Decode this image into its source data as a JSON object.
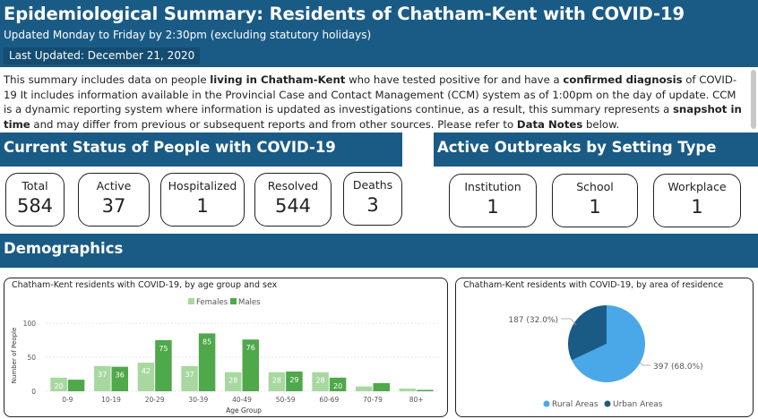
{
  "header": {
    "title": "Epidemiological Summary: Residents of Chatham-Kent with COVID-19",
    "subtitle": "Updated Monday to Friday by 2:30pm (excluding statutory holidays)",
    "last_updated": "Last Updated: December 21, 2020"
  },
  "intro": {
    "p1": "This summary includes data on people ",
    "b1": "living in Chatham-Kent",
    "p2": " who have tested positive for and have a ",
    "b2": "confirmed diagnosis",
    "p3": " of COVID-19 It includes information available in the Provincial Case and Contact Management (CCM) system as of 1:00pm on the day of update. CCM is a dynamic reporting system where information is updated as investigations continue, as a result, this summary represents a ",
    "b3": "snapshot in time",
    "p4": " and may differ from previous or subsequent reports and from other sources. Please refer to ",
    "b4": "Data Notes",
    "p5": " below."
  },
  "status": {
    "title": "Current Status of People with COVID-19",
    "cards": [
      {
        "label": "Total",
        "value": "584"
      },
      {
        "label": "Active",
        "value": "37"
      },
      {
        "label": "Hospitalized",
        "value": "1"
      },
      {
        "label": "Resolved",
        "value": "544"
      },
      {
        "label": "Deaths",
        "value": "3"
      }
    ]
  },
  "outbreaks": {
    "title": "Active Outbreaks by Setting Type",
    "cards": [
      {
        "label": "Institution",
        "value": "1"
      },
      {
        "label": "School",
        "value": "1"
      },
      {
        "label": "Workplace",
        "value": "1"
      }
    ]
  },
  "demographics": {
    "title": "Demographics"
  },
  "colors": {
    "header_blue": "#1a5b86",
    "females": "#a8d8a0",
    "males": "#4fa84a",
    "rural": "#4aa8e8",
    "urban": "#1a5b86"
  },
  "chart_data": [
    {
      "type": "bar",
      "title": "Chatham-Kent residents with COVID-19, by age group and sex",
      "xlabel": "Age Group",
      "ylabel": "Number of People",
      "ylim": [
        0,
        100
      ],
      "yticks": [
        "0",
        "50",
        "100"
      ],
      "legend_position": "top",
      "categories": [
        "0-9",
        "10-19",
        "20-29",
        "30-39",
        "40-49",
        "50-59",
        "60-69",
        "70-79",
        "80+"
      ],
      "series": [
        {
          "name": "Females",
          "values": [
            20,
            37,
            42,
            37,
            28,
            28,
            28,
            7,
            4
          ],
          "labels": [
            "20",
            "37",
            "42",
            "37",
            "28",
            "28",
            "28",
            "",
            ""
          ]
        },
        {
          "name": "Males",
          "values": [
            17,
            36,
            75,
            85,
            76,
            29,
            20,
            12,
            2
          ],
          "labels": [
            "",
            "36",
            "75",
            "85",
            "76",
            "29",
            "20",
            "",
            ""
          ]
        }
      ]
    },
    {
      "type": "pie",
      "title": "Chatham-Kent residents with COVID-19, by area of residence",
      "legend_position": "bottom",
      "slices": [
        {
          "name": "Rural Areas",
          "value": 397,
          "label": "397 (68.0%)"
        },
        {
          "name": "Urban Areas",
          "value": 187,
          "label": "187 (32.0%)"
        }
      ]
    }
  ]
}
